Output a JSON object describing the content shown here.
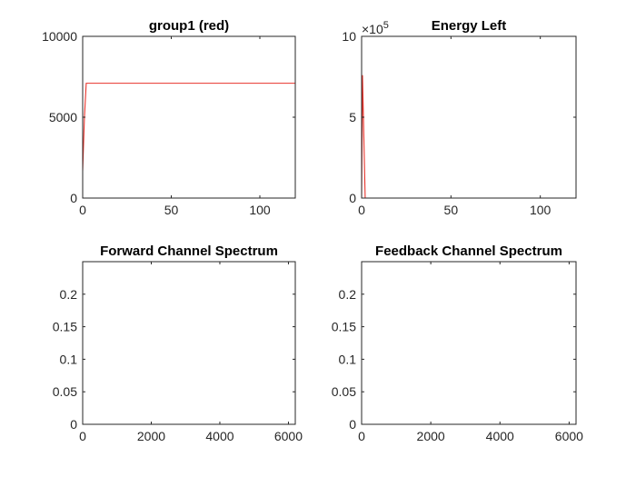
{
  "colors": {
    "red": "#e8332b",
    "blue": "#0072bd",
    "axis": "#262626"
  },
  "chart_data": [
    {
      "type": "line",
      "title": "group1 (red)",
      "xlabel": "",
      "ylabel": "",
      "xlim": [
        0,
        120
      ],
      "ylim": [
        0,
        10000
      ],
      "xticks": [
        0,
        50,
        100
      ],
      "yticks": [
        0,
        5000,
        10000
      ],
      "xtick_labels": [
        "0",
        "50",
        "100"
      ],
      "ytick_labels": [
        "0",
        "5000",
        "10000"
      ],
      "grid": false,
      "series": [
        {
          "color": "#e8332b",
          "style": "solid",
          "x": [
            0,
            1,
            2,
            120
          ],
          "y": [
            1700,
            5000,
            7100,
            7100
          ]
        }
      ]
    },
    {
      "type": "line",
      "title": "Energy Left",
      "xlabel": "",
      "ylabel": "",
      "xlim": [
        0,
        120
      ],
      "ylim": [
        0,
        10
      ],
      "xticks": [
        0,
        50,
        100
      ],
      "yticks": [
        0,
        5,
        10
      ],
      "xtick_labels": [
        "0",
        "50",
        "100"
      ],
      "ytick_labels": [
        "0",
        "5",
        "10"
      ],
      "y_exponent_label": "×10",
      "y_exponent_power": "5",
      "grid": false,
      "series": [
        {
          "color": "#e8332b",
          "style": "dotted",
          "x": [
            0,
            120
          ],
          "y": [
            10,
            10
          ]
        },
        {
          "color": "#e8332b",
          "style": "solid",
          "x": [
            0,
            0.5,
            2,
            120
          ],
          "y": [
            0,
            7.6,
            0,
            0
          ]
        }
      ]
    },
    {
      "type": "line",
      "title": "Forward Channel Spectrum",
      "xlabel": "",
      "ylabel": "",
      "xlim": [
        0,
        6200
      ],
      "ylim": [
        0,
        0.25
      ],
      "xticks": [
        0,
        2000,
        4000,
        6000
      ],
      "yticks": [
        0,
        0.05,
        0.1,
        0.15,
        0.2
      ],
      "xtick_labels": [
        "0",
        "2000",
        "4000",
        "6000"
      ],
      "ytick_labels": [
        "0",
        "0.05",
        "0.1",
        "0.15",
        "0.2"
      ],
      "grid": false,
      "series": [
        {
          "color": "#0072bd",
          "style": "solid",
          "x": [
            0,
            6200
          ],
          "y": [
            0,
            0
          ]
        }
      ]
    },
    {
      "type": "line",
      "title": "Feedback Channel Spectrum",
      "xlabel": "",
      "ylabel": "",
      "xlim": [
        0,
        6200
      ],
      "ylim": [
        0,
        0.25
      ],
      "xticks": [
        0,
        2000,
        4000,
        6000
      ],
      "yticks": [
        0,
        0.05,
        0.1,
        0.15,
        0.2
      ],
      "xtick_labels": [
        "0",
        "2000",
        "4000",
        "6000"
      ],
      "ytick_labels": [
        "0",
        "0.05",
        "0.1",
        "0.15",
        "0.2"
      ],
      "grid": false,
      "series": [
        {
          "color": "#0072bd",
          "style": "solid",
          "x": [
            0,
            6200
          ],
          "y": [
            0,
            0
          ]
        }
      ]
    }
  ]
}
